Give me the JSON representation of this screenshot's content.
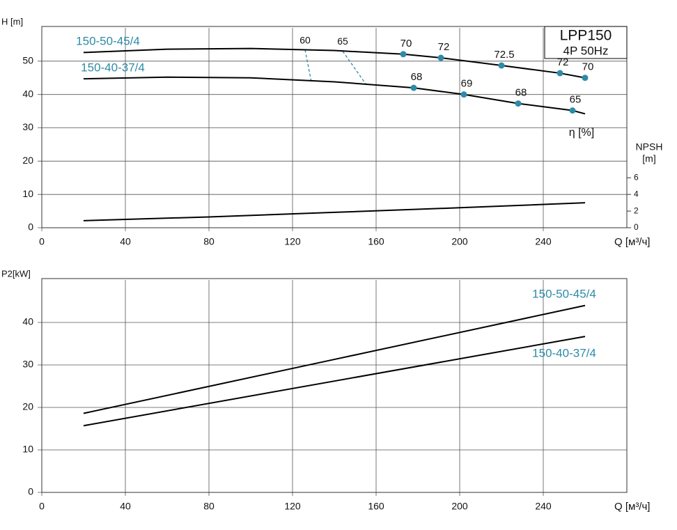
{
  "chart_data": [
    {
      "type": "line",
      "title": "LPP150",
      "subtitle": "4P  50Hz",
      "y_label": "H [m]",
      "y2_label": [
        "NPSH",
        "[m]"
      ],
      "x_label": "Q [м³/ч]",
      "xlim": [
        0,
        280
      ],
      "xticks": [
        0,
        40,
        80,
        120,
        160,
        200,
        240
      ],
      "ylim": [
        0,
        60
      ],
      "yticks": [
        0,
        10,
        20,
        30,
        40,
        50
      ],
      "y2lim": [
        0,
        24
      ],
      "y2ticks": [
        0,
        2,
        4,
        6
      ],
      "grid": true,
      "label_color": "#2e8ba8",
      "series": [
        {
          "name": "150-50-45/4",
          "color": "#000000",
          "x": [
            20,
            60,
            100,
            140,
            173,
            191,
            220,
            248,
            260
          ],
          "values": [
            52.6,
            53.6,
            53.8,
            53.2,
            52.1,
            51.0,
            48.7,
            46.4,
            45.0
          ]
        },
        {
          "name": "150-40-37/4",
          "color": "#000000",
          "x": [
            20,
            60,
            100,
            140,
            178,
            202,
            228,
            254,
            260
          ],
          "values": [
            44.7,
            45.2,
            45.0,
            43.8,
            42.0,
            40.0,
            37.3,
            35.2,
            34.2
          ]
        },
        {
          "color": "#000000",
          "axis": "y2",
          "x": [
            20,
            80,
            140,
            200,
            260
          ],
          "values": [
            0.85,
            1.3,
            1.85,
            2.4,
            3.0
          ]
        }
      ],
      "efficiency_label": "η [%]",
      "efficiency_points": [
        {
          "q": 173,
          "h": 52.1,
          "eta": 70
        },
        {
          "q": 191,
          "h": 51.0,
          "eta": 72
        },
        {
          "q": 220,
          "h": 48.7,
          "eta": 72.5
        },
        {
          "q": 248,
          "h": 46.4,
          "eta": 72
        },
        {
          "q": 260,
          "h": 45.0,
          "eta": 70
        },
        {
          "q": 178,
          "h": 42.0,
          "eta": 68
        },
        {
          "q": 202,
          "h": 40.0,
          "eta": 69
        },
        {
          "q": 228,
          "h": 37.3,
          "eta": 68
        },
        {
          "q": 254,
          "h": 35.2,
          "eta": 65
        }
      ],
      "iso_lines": [
        {
          "eta": 60,
          "q": [
            126,
            129
          ],
          "h": [
            53.4,
            43.8
          ]
        },
        {
          "eta": 65,
          "q": [
            144,
            155
          ],
          "h": [
            53.0,
            43.2
          ]
        }
      ]
    },
    {
      "type": "line",
      "y_label": "P2[kW]",
      "x_label": "Q [м³/ч]",
      "xlim": [
        0,
        280
      ],
      "xticks": [
        0,
        40,
        80,
        120,
        160,
        200,
        240
      ],
      "ylim": [
        0,
        50
      ],
      "yticks": [
        0,
        10,
        20,
        30,
        40
      ],
      "grid": true,
      "label_color": "#2e8ba8",
      "series": [
        {
          "name": "150-50-45/4",
          "color": "#000000",
          "x": [
            20,
            140,
            260
          ],
          "values": [
            18.6,
            31.3,
            44.0
          ]
        },
        {
          "name": "150-40-37/4",
          "color": "#000000",
          "x": [
            20,
            140,
            260
          ],
          "values": [
            15.7,
            26.2,
            36.7
          ]
        }
      ]
    }
  ]
}
